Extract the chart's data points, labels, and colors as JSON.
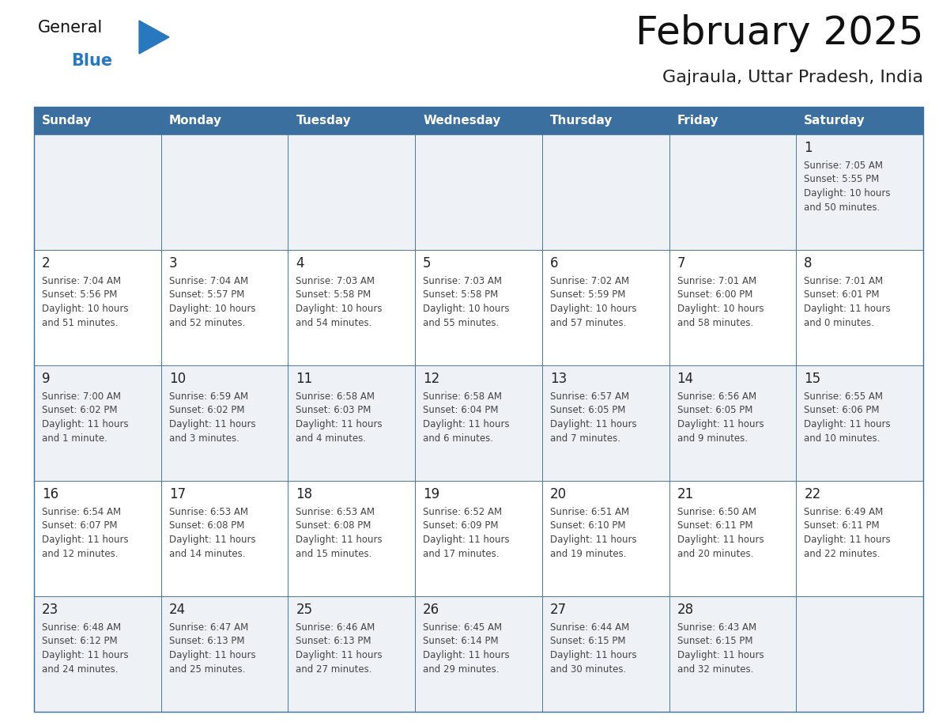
{
  "title": "February 2025",
  "subtitle": "Gajraula, Uttar Pradesh, India",
  "header_bg": "#3a6f9f",
  "header_text_color": "#ffffff",
  "cell_bg_light": "#eef2f7",
  "cell_bg_white": "#ffffff",
  "day_headers": [
    "Sunday",
    "Monday",
    "Tuesday",
    "Wednesday",
    "Thursday",
    "Friday",
    "Saturday"
  ],
  "days": [
    {
      "day": 1,
      "col": 6,
      "row": 0,
      "sunrise": "7:05 AM",
      "sunset": "5:55 PM",
      "daylight": "10 hours and 50 minutes."
    },
    {
      "day": 2,
      "col": 0,
      "row": 1,
      "sunrise": "7:04 AM",
      "sunset": "5:56 PM",
      "daylight": "10 hours and 51 minutes."
    },
    {
      "day": 3,
      "col": 1,
      "row": 1,
      "sunrise": "7:04 AM",
      "sunset": "5:57 PM",
      "daylight": "10 hours and 52 minutes."
    },
    {
      "day": 4,
      "col": 2,
      "row": 1,
      "sunrise": "7:03 AM",
      "sunset": "5:58 PM",
      "daylight": "10 hours and 54 minutes."
    },
    {
      "day": 5,
      "col": 3,
      "row": 1,
      "sunrise": "7:03 AM",
      "sunset": "5:58 PM",
      "daylight": "10 hours and 55 minutes."
    },
    {
      "day": 6,
      "col": 4,
      "row": 1,
      "sunrise": "7:02 AM",
      "sunset": "5:59 PM",
      "daylight": "10 hours and 57 minutes."
    },
    {
      "day": 7,
      "col": 5,
      "row": 1,
      "sunrise": "7:01 AM",
      "sunset": "6:00 PM",
      "daylight": "10 hours and 58 minutes."
    },
    {
      "day": 8,
      "col": 6,
      "row": 1,
      "sunrise": "7:01 AM",
      "sunset": "6:01 PM",
      "daylight": "11 hours and 0 minutes."
    },
    {
      "day": 9,
      "col": 0,
      "row": 2,
      "sunrise": "7:00 AM",
      "sunset": "6:02 PM",
      "daylight": "11 hours and 1 minute."
    },
    {
      "day": 10,
      "col": 1,
      "row": 2,
      "sunrise": "6:59 AM",
      "sunset": "6:02 PM",
      "daylight": "11 hours and 3 minutes."
    },
    {
      "day": 11,
      "col": 2,
      "row": 2,
      "sunrise": "6:58 AM",
      "sunset": "6:03 PM",
      "daylight": "11 hours and 4 minutes."
    },
    {
      "day": 12,
      "col": 3,
      "row": 2,
      "sunrise": "6:58 AM",
      "sunset": "6:04 PM",
      "daylight": "11 hours and 6 minutes."
    },
    {
      "day": 13,
      "col": 4,
      "row": 2,
      "sunrise": "6:57 AM",
      "sunset": "6:05 PM",
      "daylight": "11 hours and 7 minutes."
    },
    {
      "day": 14,
      "col": 5,
      "row": 2,
      "sunrise": "6:56 AM",
      "sunset": "6:05 PM",
      "daylight": "11 hours and 9 minutes."
    },
    {
      "day": 15,
      "col": 6,
      "row": 2,
      "sunrise": "6:55 AM",
      "sunset": "6:06 PM",
      "daylight": "11 hours and 10 minutes."
    },
    {
      "day": 16,
      "col": 0,
      "row": 3,
      "sunrise": "6:54 AM",
      "sunset": "6:07 PM",
      "daylight": "11 hours and 12 minutes."
    },
    {
      "day": 17,
      "col": 1,
      "row": 3,
      "sunrise": "6:53 AM",
      "sunset": "6:08 PM",
      "daylight": "11 hours and 14 minutes."
    },
    {
      "day": 18,
      "col": 2,
      "row": 3,
      "sunrise": "6:53 AM",
      "sunset": "6:08 PM",
      "daylight": "11 hours and 15 minutes."
    },
    {
      "day": 19,
      "col": 3,
      "row": 3,
      "sunrise": "6:52 AM",
      "sunset": "6:09 PM",
      "daylight": "11 hours and 17 minutes."
    },
    {
      "day": 20,
      "col": 4,
      "row": 3,
      "sunrise": "6:51 AM",
      "sunset": "6:10 PM",
      "daylight": "11 hours and 19 minutes."
    },
    {
      "day": 21,
      "col": 5,
      "row": 3,
      "sunrise": "6:50 AM",
      "sunset": "6:11 PM",
      "daylight": "11 hours and 20 minutes."
    },
    {
      "day": 22,
      "col": 6,
      "row": 3,
      "sunrise": "6:49 AM",
      "sunset": "6:11 PM",
      "daylight": "11 hours and 22 minutes."
    },
    {
      "day": 23,
      "col": 0,
      "row": 4,
      "sunrise": "6:48 AM",
      "sunset": "6:12 PM",
      "daylight": "11 hours and 24 minutes."
    },
    {
      "day": 24,
      "col": 1,
      "row": 4,
      "sunrise": "6:47 AM",
      "sunset": "6:13 PM",
      "daylight": "11 hours and 25 minutes."
    },
    {
      "day": 25,
      "col": 2,
      "row": 4,
      "sunrise": "6:46 AM",
      "sunset": "6:13 PM",
      "daylight": "11 hours and 27 minutes."
    },
    {
      "day": 26,
      "col": 3,
      "row": 4,
      "sunrise": "6:45 AM",
      "sunset": "6:14 PM",
      "daylight": "11 hours and 29 minutes."
    },
    {
      "day": 27,
      "col": 4,
      "row": 4,
      "sunrise": "6:44 AM",
      "sunset": "6:15 PM",
      "daylight": "11 hours and 30 minutes."
    },
    {
      "day": 28,
      "col": 5,
      "row": 4,
      "sunrise": "6:43 AM",
      "sunset": "6:15 PM",
      "daylight": "11 hours and 32 minutes."
    }
  ],
  "num_rows": 5,
  "logo_general_color": "#111111",
  "logo_blue_color": "#2878c0",
  "logo_triangle_color": "#2878c0",
  "divider_color": "#3a6f9f",
  "day_number_color": "#222222",
  "info_text_color": "#444444",
  "bg_color": "#ffffff",
  "title_fontsize": 36,
  "subtitle_fontsize": 16,
  "header_fontsize": 11,
  "day_num_fontsize": 12,
  "info_fontsize": 8.5
}
